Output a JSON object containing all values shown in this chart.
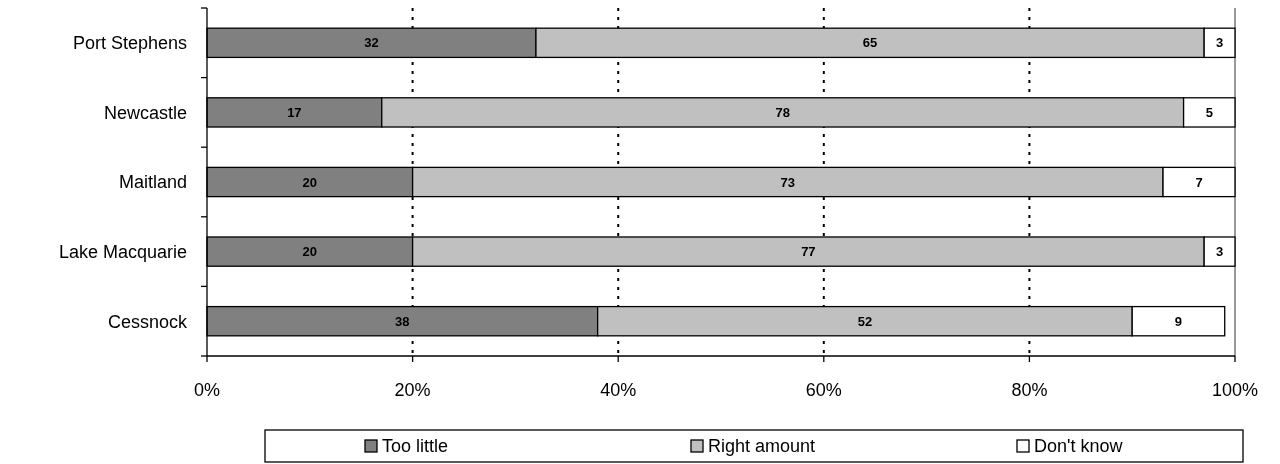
{
  "chart_data": {
    "type": "bar",
    "orientation": "horizontal",
    "stacked": true,
    "categories": [
      "Port Stephens",
      "Newcastle",
      "Maitland",
      "Lake Macquarie",
      "Cessnock"
    ],
    "series": [
      {
        "name": "Too little",
        "color": "#808080",
        "values": [
          32,
          17,
          20,
          20,
          38
        ]
      },
      {
        "name": "Right amount",
        "color": "#c0c0c0",
        "values": [
          65,
          78,
          73,
          77,
          52
        ]
      },
      {
        "name": "Don't know",
        "color": "#ffffff",
        "values": [
          3,
          5,
          7,
          3,
          9
        ]
      }
    ],
    "xlim": [
      0,
      100
    ],
    "xticks": [
      {
        "value": 0,
        "label": "0%"
      },
      {
        "value": 20,
        "label": "20%"
      },
      {
        "value": 40,
        "label": "40%"
      },
      {
        "value": 60,
        "label": "60%"
      },
      {
        "value": 80,
        "label": "80%"
      },
      {
        "value": 100,
        "label": "100%"
      }
    ],
    "grid": "x",
    "legend": "bottom",
    "data_labels": true
  }
}
